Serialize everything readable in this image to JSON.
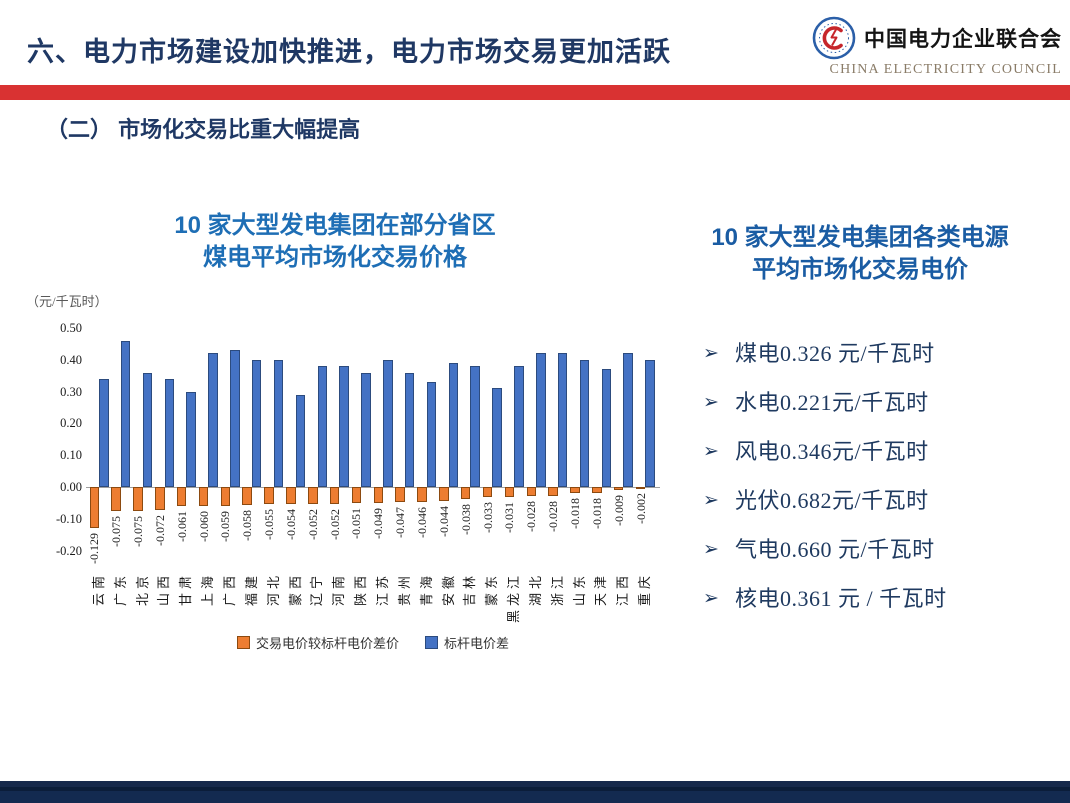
{
  "slide": {
    "header": {
      "title": "六、电力市场建设加快推进，电力市场交易更加活跃",
      "logo_cn": "中国电力企业联合会",
      "logo_en": "CHINA ELECTRICITY COUNCIL"
    },
    "subtitle": "（二） 市场化交易比重大幅提高",
    "accent_colors": {
      "red_bar": "#D93232",
      "title_navy": "#1F3864",
      "footer_navy": "#15294D"
    }
  },
  "left_panel": {
    "title_line1": "10 家大型发电集团在部分省区",
    "title_line2": "煤电平均市场化交易价格",
    "title_color": "#1E6EB5"
  },
  "right_panel": {
    "title_line1": "10 家大型发电集团各类电源",
    "title_line2": "平均市场化交易电价",
    "title_color": "#1A5CA3",
    "bullet_glyph": "➢",
    "bullets": [
      "煤电0.326 元/千瓦时",
      "水电0.221元/千瓦时",
      "风电0.346元/千瓦时",
      "光伏0.682元/千瓦时",
      "气电0.660 元/千瓦时",
      "核电0.361 元 / 千瓦时"
    ]
  },
  "chart_data": {
    "type": "bar",
    "title": "10 家大型发电集团在部分省区煤电平均市场化交易价格",
    "unit_label": "（元/千瓦时）",
    "categories": [
      "云南",
      "广东",
      "北京",
      "山西",
      "甘肃",
      "上海",
      "广西",
      "福建",
      "河北",
      "蒙西",
      "辽宁",
      "河南",
      "陕西",
      "江苏",
      "贵州",
      "青海",
      "安徽",
      "吉林",
      "蒙东",
      "黑龙江",
      "湖北",
      "浙江",
      "山东",
      "天津",
      "江西",
      "重庆"
    ],
    "series": [
      {
        "name": "交易电价较标杆电价差价",
        "fill": "#ED7D31",
        "border": "#8C4A10",
        "values": [
          -0.129,
          -0.075,
          -0.075,
          -0.072,
          -0.061,
          -0.06,
          -0.059,
          -0.058,
          -0.055,
          -0.054,
          -0.052,
          -0.052,
          -0.051,
          -0.049,
          -0.047,
          -0.046,
          -0.044,
          -0.038,
          -0.033,
          -0.031,
          -0.028,
          -0.028,
          -0.018,
          -0.018,
          -0.009,
          -0.002
        ]
      },
      {
        "name": "标杆电价差",
        "fill": "#4472C4",
        "border": "#2C4B7E",
        "values": [
          0.34,
          0.46,
          0.36,
          0.34,
          0.3,
          0.42,
          0.43,
          0.4,
          0.4,
          0.29,
          0.38,
          0.38,
          0.36,
          0.4,
          0.36,
          0.33,
          0.39,
          0.38,
          0.31,
          0.38,
          0.42,
          0.42,
          0.4,
          0.37,
          0.42,
          0.4
        ]
      }
    ],
    "data_labels": [
      "-0.129",
      "-0.075",
      "-0.075",
      "-0.072",
      "-0.061",
      "-0.060",
      "-0.059",
      "-0.058",
      "-0.055",
      "-0.054",
      "-0.052",
      "-0.052",
      "-0.051",
      "-0.049",
      "-0.047",
      "-0.046",
      "-0.044",
      "-0.038",
      "-0.033",
      "-0.031",
      "-0.028",
      "-0.028",
      "-0.018",
      "-0.018",
      "-0.009",
      "-0.002"
    ],
    "yticks": [
      "0.50",
      "0.40",
      "0.30",
      "0.20",
      "0.10",
      "0.00",
      "-0.10",
      "-0.20"
    ],
    "ylim": [
      -0.2,
      0.5
    ],
    "grid": "off",
    "legend_position": "bottom"
  }
}
